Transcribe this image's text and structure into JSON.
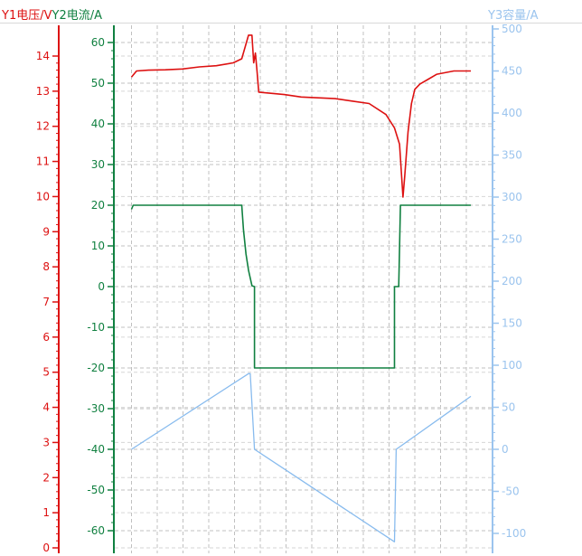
{
  "chart_data": {
    "type": "line",
    "axis_titles": {
      "y1": "Y1电压/V",
      "y2": "Y2电流/A",
      "y3": "Y3容量/A"
    },
    "colors": {
      "voltage": "#dd1111",
      "current": "#108040",
      "capacity": "#88bbee",
      "grid": "#c0c0c0",
      "axis_y1": "#dd1111",
      "axis_y2": "#108040",
      "axis_y3": "#9bc4ee"
    },
    "grid": true,
    "axes": {
      "y1": {
        "ylim": [
          0,
          14
        ],
        "ticks": [
          "0",
          "1",
          "2",
          "3",
          "4",
          "5",
          "6",
          "7",
          "8",
          "9",
          "10",
          "11",
          "12",
          "13",
          "14"
        ]
      },
      "y2": {
        "ylim": [
          -60,
          60
        ],
        "ticks": [
          "-60",
          "-50",
          "-40",
          "-30",
          "-20",
          "-10",
          "0",
          "10",
          "20",
          "30",
          "40",
          "50",
          "60"
        ]
      },
      "y3": {
        "ylim": [
          -100,
          500
        ],
        "ticks": [
          "-100",
          "-50",
          "0",
          "50",
          "100",
          "150",
          "200",
          "250",
          "300",
          "350",
          "400",
          "450",
          "500"
        ]
      }
    },
    "series": [
      {
        "axis": "y2",
        "color_key": "voltage",
        "x": [
          0,
          0.3,
          1,
          2,
          3,
          4,
          5,
          6,
          6.5,
          6.9,
          7.1,
          7.2,
          7.3,
          7.4,
          7.5,
          8,
          9,
          10,
          11,
          12,
          13,
          14,
          15,
          15.5,
          15.8,
          16,
          16.1,
          16.3,
          16.5,
          16.7,
          17,
          17.5,
          18,
          19,
          20
        ],
        "values": [
          51.5,
          53,
          53.2,
          53.3,
          53.5,
          54,
          54.3,
          55,
          56,
          61.8,
          61.8,
          55,
          57.4,
          53,
          47.8,
          47.6,
          47.2,
          46.6,
          46.4,
          46.2,
          45.6,
          45,
          42.3,
          39,
          35,
          22,
          27,
          38,
          45,
          48.5,
          49.8,
          51,
          52.2,
          53,
          53
        ]
      },
      {
        "axis": "y2",
        "color_key": "current",
        "x": [
          0,
          0.1,
          6.5,
          6.6,
          6.75,
          6.9,
          7.1,
          7.25,
          7.25,
          15.5,
          15.5,
          15.75,
          15.85,
          20
        ],
        "values": [
          19,
          20,
          20,
          14,
          8,
          4,
          0.2,
          0,
          -20,
          -20,
          0,
          0,
          20,
          20
        ]
      },
      {
        "axis": "y3",
        "color_key": "capacity",
        "x": [
          0,
          6.9,
          7.0,
          7.25,
          15.5,
          15.6,
          20
        ],
        "values": [
          0,
          90,
          90,
          0,
          -110,
          0,
          63
        ]
      }
    ]
  }
}
